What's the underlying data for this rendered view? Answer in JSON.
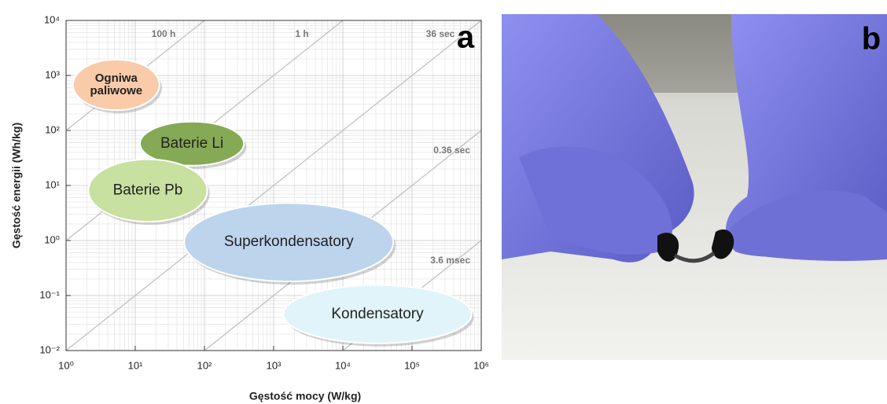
{
  "chart_data": {
    "type": "ragone",
    "panel_label": "a",
    "x_label": "Gęstość mocy (W/kg)",
    "y_label": "Gęstość energii (Wh/kg)",
    "xlog": true,
    "ylog": true,
    "grid": true,
    "xlim": [
      1,
      1000000
    ],
    "ylim": [
      0.01,
      10000
    ],
    "xticks": [
      {
        "value": 1,
        "label": "10⁰"
      },
      {
        "value": 10,
        "label": "10¹"
      },
      {
        "value": 100,
        "label": "10²"
      },
      {
        "value": 1000,
        "label": "10³"
      },
      {
        "value": 10000,
        "label": "10⁴"
      },
      {
        "value": 100000,
        "label": "10⁵"
      },
      {
        "value": 1000000,
        "label": "10⁶"
      }
    ],
    "yticks": [
      {
        "value": 0.01,
        "label": "10⁻²"
      },
      {
        "value": 0.1,
        "label": "10⁻¹"
      },
      {
        "value": 1,
        "label": "10⁰"
      },
      {
        "value": 10,
        "label": "10¹"
      },
      {
        "value": 100,
        "label": "10²"
      },
      {
        "value": 1000,
        "label": "10³"
      },
      {
        "value": 10000,
        "label": "10⁴"
      }
    ],
    "diagonals": [
      {
        "label": "100 h",
        "hours": 100
      },
      {
        "label": "1 h",
        "hours": 1
      },
      {
        "label": "36 sec",
        "hours": 0.01
      },
      {
        "label": "0.36 sec",
        "hours": 0.0001
      },
      {
        "label": "3.6 msec",
        "hours": 1e-06
      }
    ],
    "regions": [
      {
        "label_lines": [
          "Ogniwa",
          "paliwowe"
        ],
        "color": "#f9cba9",
        "xlim": [
          1.26,
          22.4
        ],
        "ylim": [
          234,
          1950
        ]
      },
      {
        "label_lines": [
          "Baterie Li"
        ],
        "color": "#86a955",
        "xlim": [
          11.7,
          372
        ],
        "ylim": [
          22.9,
          145
        ]
      },
      {
        "label_lines": [
          "Baterie Pb"
        ],
        "color": "#c8e0a0",
        "xlim": [
          2.1,
          110
        ],
        "ylim": [
          2.2,
          30
        ]
      },
      {
        "label_lines": [
          "Superkondensatory"
        ],
        "color": "#bdd4ed",
        "xlim": [
          51,
          53700
        ],
        "ylim": [
          0.18,
          4.8
        ]
      },
      {
        "label_lines": [
          "Kondensatory"
        ],
        "color": "#e0f4f9",
        "xlim": [
          1380,
          724000
        ],
        "ylim": [
          0.0135,
          0.155
        ]
      }
    ]
  },
  "photo": {
    "panel_label": "b"
  }
}
